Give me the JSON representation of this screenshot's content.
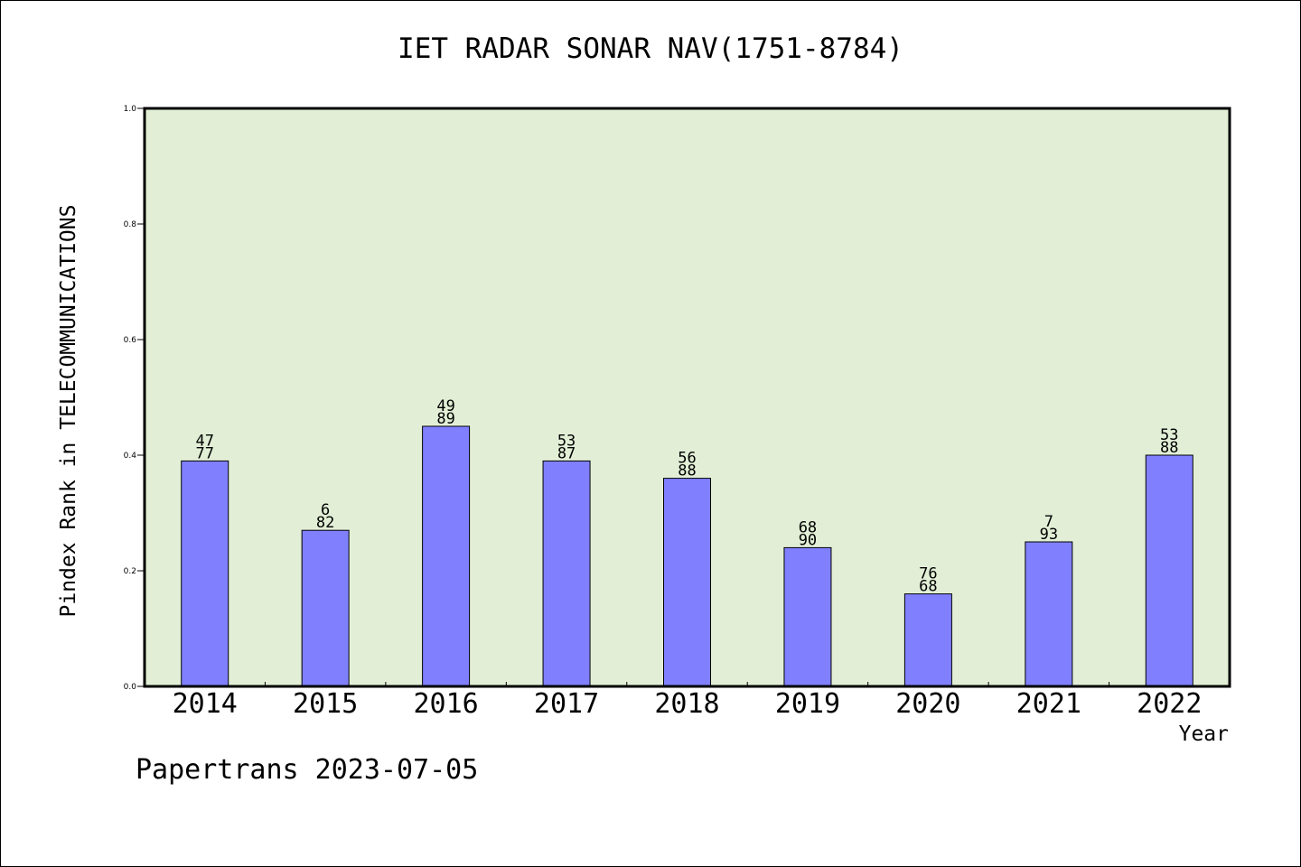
{
  "chart_data": {
    "type": "bar",
    "title": "IET RADAR SONAR NAV(1751-8784)",
    "xlabel": "Year",
    "ylabel": "Pindex Rank in TELECOMMUNICATIONS",
    "ylim": [
      0,
      1.0
    ],
    "yticks": [
      "0.0",
      "0.2",
      "0.4",
      "0.6",
      "0.8",
      "1.0"
    ],
    "categories": [
      "2014",
      "2015",
      "2016",
      "2017",
      "2018",
      "2019",
      "2020",
      "2021",
      "2022"
    ],
    "values": [
      0.39,
      0.27,
      0.45,
      0.39,
      0.36,
      0.24,
      0.16,
      0.25,
      0.4
    ],
    "bar_labels": [
      {
        "top": "47",
        "bottom": "77"
      },
      {
        "top": "6",
        "bottom": "82"
      },
      {
        "top": "49",
        "bottom": "89"
      },
      {
        "top": "53",
        "bottom": "87"
      },
      {
        "top": "56",
        "bottom": "88"
      },
      {
        "top": "68",
        "bottom": "90"
      },
      {
        "top": "76",
        "bottom": "68"
      },
      {
        "top": "7",
        "bottom": "93"
      },
      {
        "top": "53",
        "bottom": "88"
      }
    ],
    "grid": false,
    "legend": "none",
    "colors": {
      "bar": "#8080ff",
      "plot_background": "#e2efd6",
      "axis": "#000000"
    }
  },
  "footer": "Papertrans 2023-07-05"
}
